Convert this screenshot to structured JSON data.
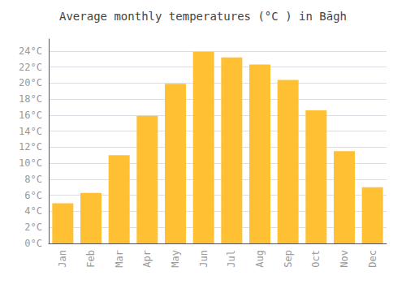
{
  "chart_data": {
    "type": "bar",
    "title": "Average monthly temperatures (°C ) in Bāgh",
    "categories": [
      "Jan",
      "Feb",
      "Mar",
      "Apr",
      "May",
      "Jun",
      "Jul",
      "Aug",
      "Sep",
      "Oct",
      "Nov",
      "Dec"
    ],
    "values": [
      5.0,
      6.3,
      11.0,
      15.9,
      19.9,
      23.9,
      23.2,
      22.3,
      20.4,
      16.6,
      11.5,
      7.0
    ],
    "color": "#FFC133",
    "ylim": [
      0,
      25.5
    ],
    "yticks": [
      {
        "value": 0,
        "label": "0°C"
      },
      {
        "value": 2,
        "label": "2°C"
      },
      {
        "value": 4,
        "label": "4°C"
      },
      {
        "value": 6,
        "label": "6°C"
      },
      {
        "value": 8,
        "label": "8°C"
      },
      {
        "value": 10,
        "label": "10°C"
      },
      {
        "value": 12,
        "label": "12°C"
      },
      {
        "value": 14,
        "label": "14°C"
      },
      {
        "value": 16,
        "label": "16°C"
      },
      {
        "value": 18,
        "label": "18°C"
      },
      {
        "value": 20,
        "label": "20°C"
      },
      {
        "value": 22,
        "label": "22°C"
      },
      {
        "value": 24,
        "label": "24°C"
      }
    ],
    "grid": true
  }
}
